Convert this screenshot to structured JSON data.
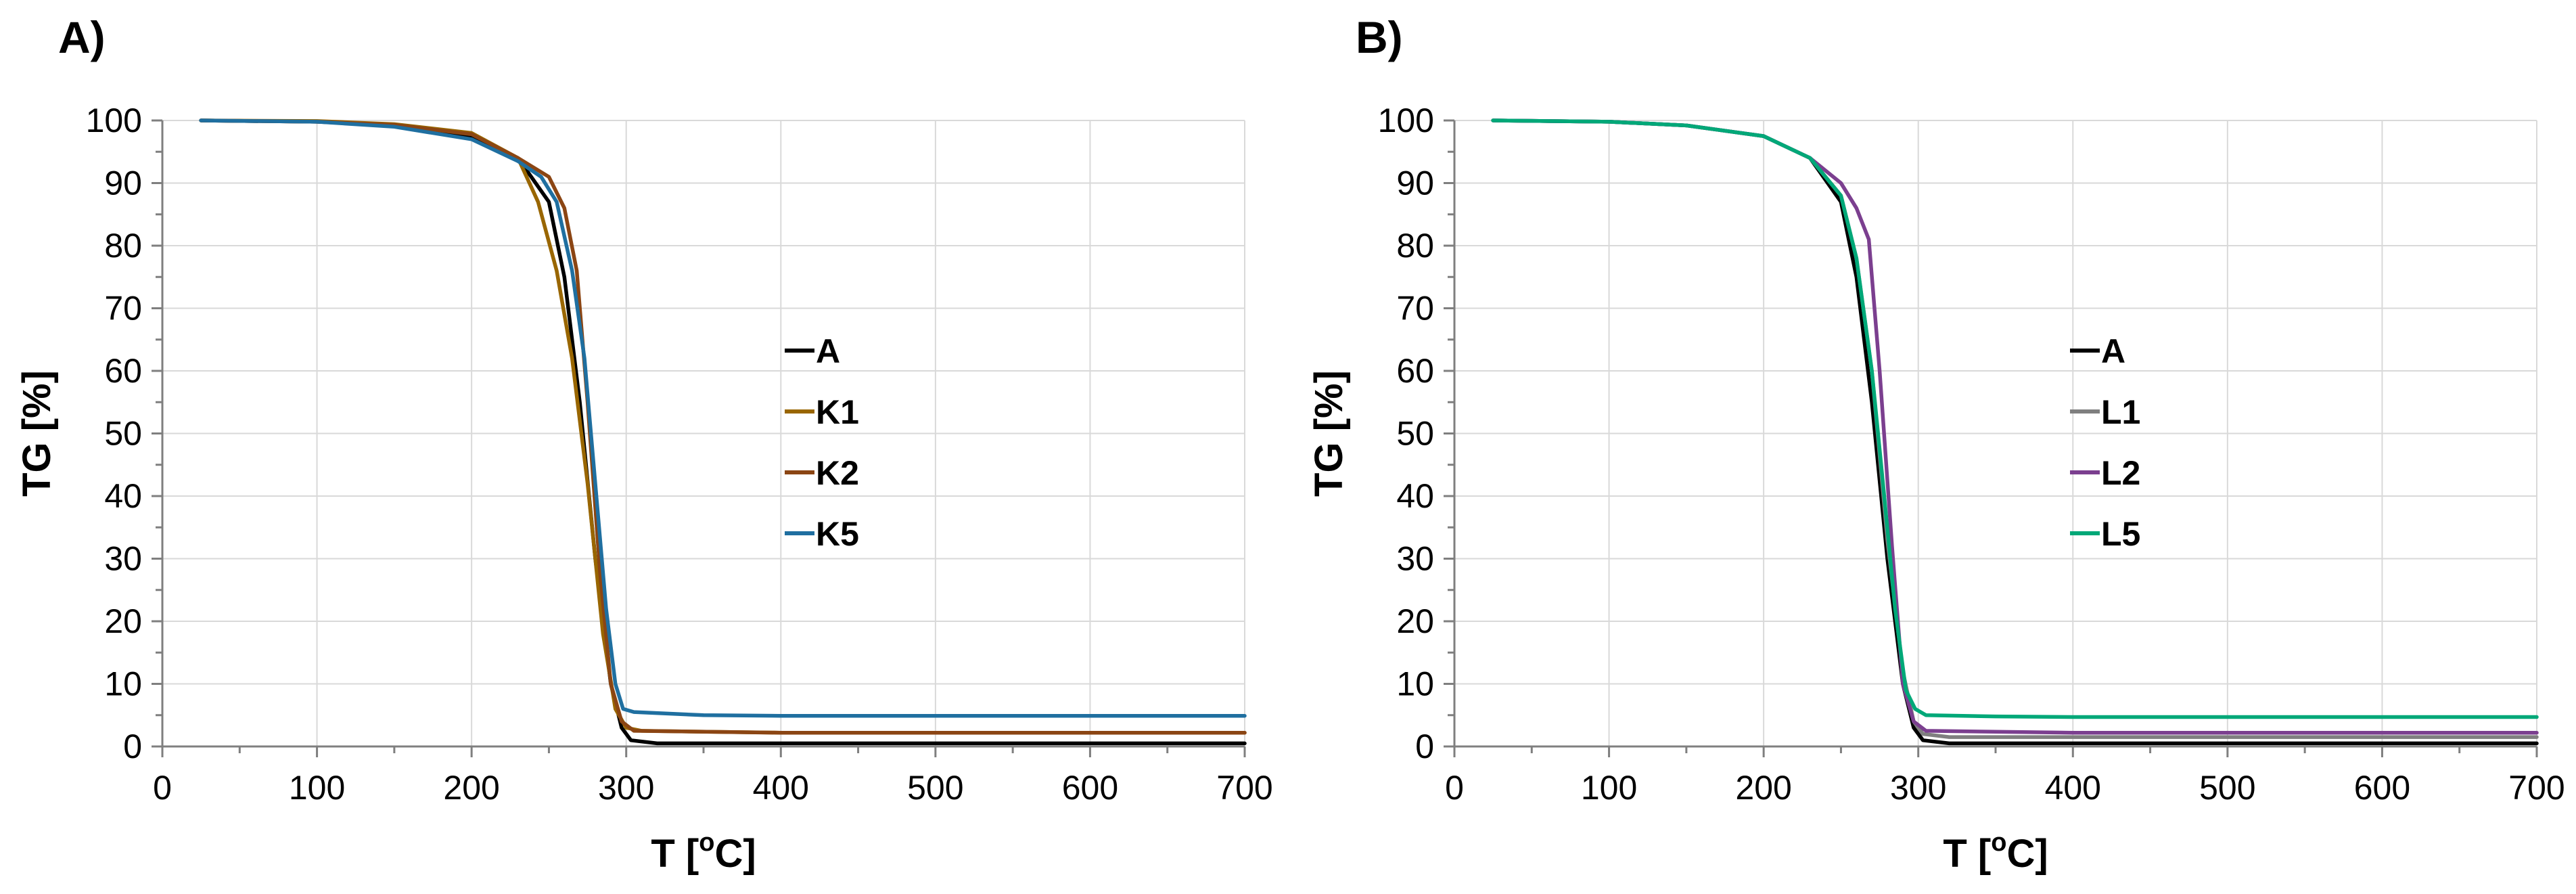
{
  "chart_data": [
    {
      "type": "line",
      "panel_label": "A)",
      "xlabel": "T [",
      "xlabel_sup": "o",
      "xlabel_end": "C]",
      "ylabel": "TG [%]",
      "xlim": [
        0,
        700
      ],
      "ylim": [
        0,
        100
      ],
      "xticks": [
        0,
        100,
        200,
        300,
        400,
        500,
        600,
        700
      ],
      "yticks": [
        0,
        10,
        20,
        30,
        40,
        50,
        60,
        70,
        80,
        90,
        100
      ],
      "grid": true,
      "legend_position": "center",
      "series": [
        {
          "name": "A",
          "color": "#000000",
          "x": [
            25,
            100,
            150,
            200,
            230,
            250,
            260,
            270,
            280,
            290,
            297,
            303,
            320,
            400,
            500,
            600,
            700
          ],
          "y": [
            100,
            99.8,
            99.2,
            97.5,
            94,
            87,
            75,
            55,
            30,
            10,
            3,
            1,
            0.5,
            0.5,
            0.5,
            0.5,
            0.5
          ]
        },
        {
          "name": "K1",
          "color": "#996600",
          "x": [
            25,
            100,
            150,
            200,
            230,
            243,
            255,
            265,
            275,
            285,
            293,
            300,
            310,
            400,
            500,
            600,
            700
          ],
          "y": [
            100,
            99.9,
            99.4,
            98,
            94,
            87,
            76,
            62,
            42,
            18,
            6,
            3,
            2.5,
            2.2,
            2.2,
            2.2,
            2.2
          ]
        },
        {
          "name": "K2",
          "color": "#8b4513",
          "x": [
            25,
            100,
            150,
            200,
            230,
            250,
            260,
            268,
            275,
            283,
            290,
            297,
            305,
            400,
            500,
            600,
            700
          ],
          "y": [
            100,
            99.8,
            99.3,
            97.8,
            94,
            91,
            86,
            76,
            55,
            28,
            10,
            4,
            2.5,
            2.2,
            2.2,
            2.2,
            2.2
          ]
        },
        {
          "name": "K5",
          "color": "#1f6fa0",
          "x": [
            25,
            100,
            150,
            200,
            230,
            245,
            255,
            265,
            273,
            280,
            287,
            293,
            298,
            305,
            350,
            400,
            500,
            600,
            700
          ],
          "y": [
            100,
            99.8,
            99,
            97,
            93.5,
            91,
            87,
            76,
            62,
            42,
            22,
            10,
            6,
            5.5,
            5,
            4.9,
            4.9,
            4.9,
            4.9
          ]
        }
      ],
      "legend": [
        "A",
        "K1",
        "K2",
        "K5"
      ]
    },
    {
      "type": "line",
      "panel_label": "B)",
      "xlabel": "T [",
      "xlabel_sup": "o",
      "xlabel_end": "C]",
      "ylabel": "TG [%]",
      "xlim": [
        0,
        700
      ],
      "ylim": [
        0,
        100
      ],
      "xticks": [
        0,
        100,
        200,
        300,
        400,
        500,
        600,
        700
      ],
      "yticks": [
        0,
        10,
        20,
        30,
        40,
        50,
        60,
        70,
        80,
        90,
        100
      ],
      "grid": true,
      "legend_position": "center",
      "series": [
        {
          "name": "A",
          "color": "#000000",
          "x": [
            25,
            100,
            150,
            200,
            230,
            250,
            260,
            270,
            280,
            290,
            297,
            303,
            320,
            400,
            500,
            600,
            700
          ],
          "y": [
            100,
            99.8,
            99.2,
            97.5,
            94,
            87,
            75,
            55,
            30,
            10,
            3,
            1,
            0.5,
            0.5,
            0.5,
            0.5,
            0.5
          ]
        },
        {
          "name": "L1",
          "color": "#7f7f7f",
          "x": [
            25,
            100,
            150,
            200,
            230,
            250,
            260,
            270,
            280,
            290,
            297,
            303,
            320,
            400,
            500,
            600,
            700
          ],
          "y": [
            100,
            99.8,
            99.2,
            97.5,
            94,
            88,
            78,
            60,
            33,
            12,
            4,
            2,
            1.5,
            1.5,
            1.5,
            1.5,
            1.5
          ]
        },
        {
          "name": "L2",
          "color": "#7b3f8f",
          "x": [
            25,
            100,
            150,
            200,
            230,
            250,
            260,
            268,
            275,
            283,
            290,
            297,
            305,
            400,
            500,
            600,
            700
          ],
          "y": [
            100,
            99.8,
            99.2,
            97.5,
            94,
            90,
            86,
            81,
            60,
            32,
            10,
            4,
            2.5,
            2.2,
            2.2,
            2.2,
            2.2
          ]
        },
        {
          "name": "L5",
          "color": "#00a878",
          "x": [
            25,
            100,
            150,
            200,
            230,
            250,
            260,
            270,
            278,
            285,
            292,
            298,
            305,
            350,
            400,
            500,
            600,
            700
          ],
          "y": [
            100,
            99.8,
            99.2,
            97.5,
            94,
            88,
            78,
            60,
            40,
            22,
            9,
            6,
            5,
            4.8,
            4.7,
            4.7,
            4.7,
            4.7
          ]
        }
      ],
      "legend": [
        "A",
        "L1",
        "L2",
        "L5"
      ]
    }
  ]
}
